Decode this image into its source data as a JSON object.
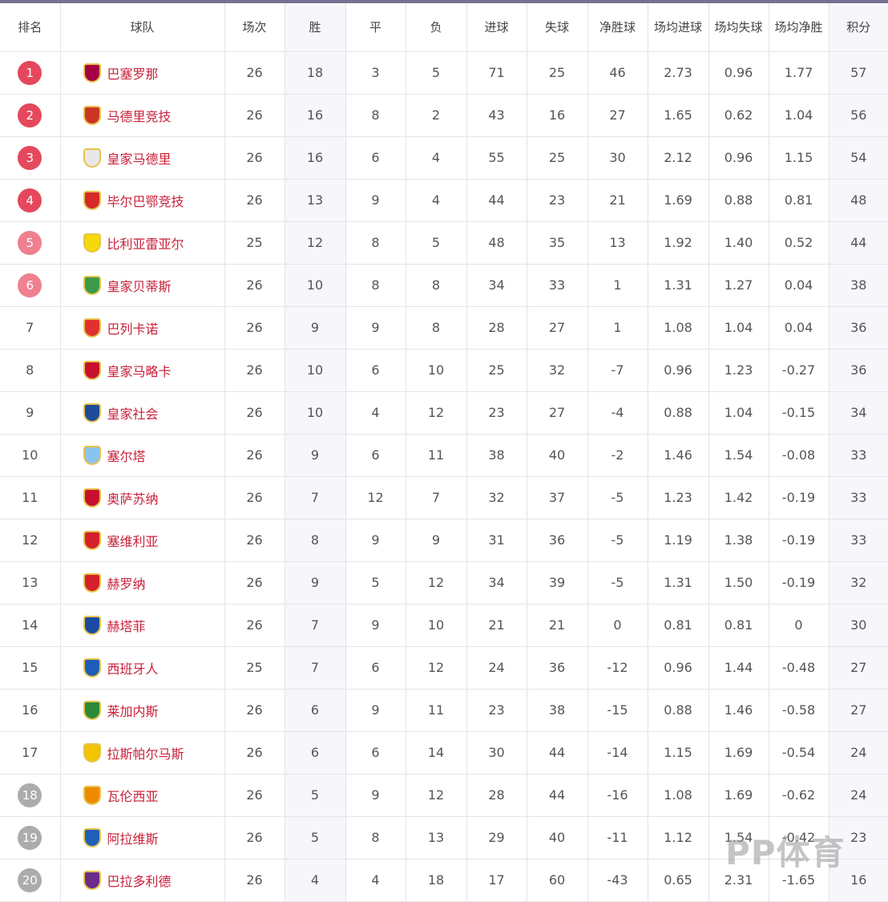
{
  "headers": [
    "排名",
    "球队",
    "场次",
    "胜",
    "平",
    "负",
    "进球",
    "失球",
    "净胜球",
    "场均进球",
    "场均失球",
    "场均净胜",
    "积分"
  ],
  "badge_colors": {
    "cl": "#e5485c",
    "el": "#ef8090",
    "rel": "#acacac"
  },
  "rows": [
    {
      "rank": "1",
      "zone": "cl",
      "team": "巴塞罗那",
      "crest": "#a50044",
      "stats": [
        "26",
        "18",
        "3",
        "5",
        "71",
        "25",
        "46",
        "2.73",
        "0.96",
        "1.77",
        "57"
      ]
    },
    {
      "rank": "2",
      "zone": "cl",
      "team": "马德里竞技",
      "crest": "#cb3524",
      "stats": [
        "26",
        "16",
        "8",
        "2",
        "43",
        "16",
        "27",
        "1.65",
        "0.62",
        "1.04",
        "56"
      ]
    },
    {
      "rank": "3",
      "zone": "cl",
      "team": "皇家马德里",
      "crest": "#e8e8e8",
      "stats": [
        "26",
        "16",
        "6",
        "4",
        "55",
        "25",
        "30",
        "2.12",
        "0.96",
        "1.15",
        "54"
      ]
    },
    {
      "rank": "4",
      "zone": "cl",
      "team": "毕尔巴鄂竞技",
      "crest": "#d42a2a",
      "stats": [
        "26",
        "13",
        "9",
        "4",
        "44",
        "23",
        "21",
        "1.69",
        "0.88",
        "0.81",
        "48"
      ]
    },
    {
      "rank": "5",
      "zone": "el",
      "team": "比利亚雷亚尔",
      "crest": "#f5d90a",
      "stats": [
        "25",
        "12",
        "8",
        "5",
        "48",
        "35",
        "13",
        "1.92",
        "1.40",
        "0.52",
        "44"
      ]
    },
    {
      "rank": "6",
      "zone": "el",
      "team": "皇家贝蒂斯",
      "crest": "#3a9a4a",
      "stats": [
        "26",
        "10",
        "8",
        "8",
        "34",
        "33",
        "1",
        "1.31",
        "1.27",
        "0.04",
        "38"
      ]
    },
    {
      "rank": "7",
      "zone": "",
      "team": "巴列卡诺",
      "crest": "#e03030",
      "stats": [
        "26",
        "9",
        "9",
        "8",
        "28",
        "27",
        "1",
        "1.08",
        "1.04",
        "0.04",
        "36"
      ]
    },
    {
      "rank": "8",
      "zone": "",
      "team": "皇家马略卡",
      "crest": "#c8102e",
      "stats": [
        "26",
        "10",
        "6",
        "10",
        "25",
        "32",
        "-7",
        "0.96",
        "1.23",
        "-0.27",
        "36"
      ]
    },
    {
      "rank": "9",
      "zone": "",
      "team": "皇家社会",
      "crest": "#1e4a9a",
      "stats": [
        "26",
        "10",
        "4",
        "12",
        "23",
        "27",
        "-4",
        "0.88",
        "1.04",
        "-0.15",
        "34"
      ]
    },
    {
      "rank": "10",
      "zone": "",
      "team": "塞尔塔",
      "crest": "#8ac3ee",
      "stats": [
        "26",
        "9",
        "6",
        "11",
        "38",
        "40",
        "-2",
        "1.46",
        "1.54",
        "-0.08",
        "33"
      ]
    },
    {
      "rank": "11",
      "zone": "",
      "team": "奥萨苏纳",
      "crest": "#c8102e",
      "stats": [
        "26",
        "7",
        "12",
        "7",
        "32",
        "37",
        "-5",
        "1.23",
        "1.42",
        "-0.19",
        "33"
      ]
    },
    {
      "rank": "12",
      "zone": "",
      "team": "塞维利亚",
      "crest": "#d4202a",
      "stats": [
        "26",
        "8",
        "9",
        "9",
        "31",
        "36",
        "-5",
        "1.19",
        "1.38",
        "-0.19",
        "33"
      ]
    },
    {
      "rank": "13",
      "zone": "",
      "team": "赫罗纳",
      "crest": "#d4202a",
      "stats": [
        "26",
        "9",
        "5",
        "12",
        "34",
        "39",
        "-5",
        "1.31",
        "1.50",
        "-0.19",
        "32"
      ]
    },
    {
      "rank": "14",
      "zone": "",
      "team": "赫塔菲",
      "crest": "#1a4aa0",
      "stats": [
        "26",
        "7",
        "9",
        "10",
        "21",
        "21",
        "0",
        "0.81",
        "0.81",
        "0",
        "30"
      ]
    },
    {
      "rank": "15",
      "zone": "",
      "team": "西班牙人",
      "crest": "#1d5cb8",
      "stats": [
        "25",
        "7",
        "6",
        "12",
        "24",
        "36",
        "-12",
        "0.96",
        "1.44",
        "-0.48",
        "27"
      ]
    },
    {
      "rank": "16",
      "zone": "",
      "team": "莱加内斯",
      "crest": "#2a8a3a",
      "stats": [
        "26",
        "6",
        "9",
        "11",
        "23",
        "38",
        "-15",
        "0.88",
        "1.46",
        "-0.58",
        "27"
      ]
    },
    {
      "rank": "17",
      "zone": "",
      "team": "拉斯帕尔马斯",
      "crest": "#f2c500",
      "stats": [
        "26",
        "6",
        "6",
        "14",
        "30",
        "44",
        "-14",
        "1.15",
        "1.69",
        "-0.54",
        "24"
      ]
    },
    {
      "rank": "18",
      "zone": "rel",
      "team": "瓦伦西亚",
      "crest": "#f08a00",
      "stats": [
        "26",
        "5",
        "9",
        "12",
        "28",
        "44",
        "-16",
        "1.08",
        "1.69",
        "-0.62",
        "24"
      ]
    },
    {
      "rank": "19",
      "zone": "rel",
      "team": "阿拉维斯",
      "crest": "#1f5fb8",
      "stats": [
        "26",
        "5",
        "8",
        "13",
        "29",
        "40",
        "-11",
        "1.12",
        "1.54",
        "-0.42",
        "23"
      ]
    },
    {
      "rank": "20",
      "zone": "rel",
      "team": "巴拉多利德",
      "crest": "#6a2b8a",
      "stats": [
        "26",
        "4",
        "4",
        "18",
        "17",
        "60",
        "-43",
        "0.65",
        "2.31",
        "-1.65",
        "16"
      ]
    }
  ],
  "watermark": "PP体育"
}
